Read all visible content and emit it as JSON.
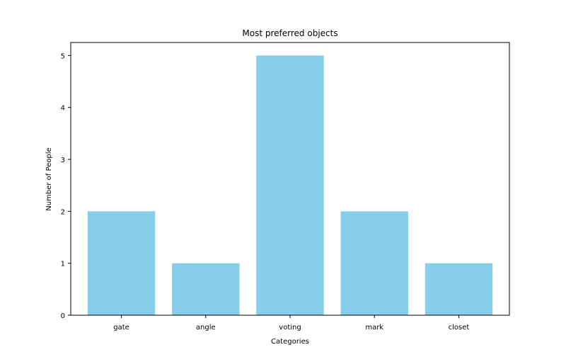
{
  "chart_data": {
    "type": "bar",
    "title": "Most preferred objects",
    "xlabel": "Categories",
    "ylabel": "Number of People",
    "categories": [
      "gate",
      "angle",
      "voting",
      "mark",
      "closet"
    ],
    "values": [
      2,
      1,
      5,
      2,
      1
    ],
    "ylim": [
      0,
      5.25
    ],
    "yticks": [
      0,
      1,
      2,
      3,
      4,
      5
    ],
    "grid": false,
    "bar_color": "#87ceeb"
  }
}
